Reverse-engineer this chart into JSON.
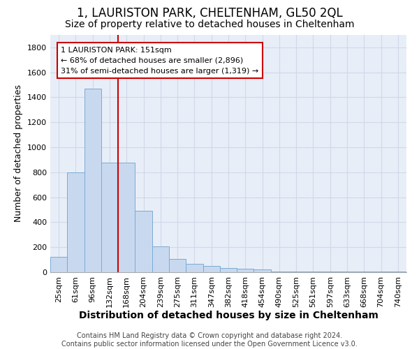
{
  "title_line1": "1, LAURISTON PARK, CHELTENHAM, GL50 2QL",
  "title_line2": "Size of property relative to detached houses in Cheltenham",
  "xlabel": "Distribution of detached houses by size in Cheltenham",
  "ylabel": "Number of detached properties",
  "footer_line1": "Contains HM Land Registry data © Crown copyright and database right 2024.",
  "footer_line2": "Contains public sector information licensed under the Open Government Licence v3.0.",
  "categories": [
    "25sqm",
    "61sqm",
    "96sqm",
    "132sqm",
    "168sqm",
    "204sqm",
    "239sqm",
    "275sqm",
    "311sqm",
    "347sqm",
    "382sqm",
    "418sqm",
    "454sqm",
    "490sqm",
    "525sqm",
    "561sqm",
    "597sqm",
    "633sqm",
    "668sqm",
    "704sqm",
    "740sqm"
  ],
  "values": [
    125,
    800,
    1470,
    875,
    875,
    490,
    205,
    105,
    65,
    50,
    35,
    30,
    20,
    5,
    5,
    5,
    5,
    5,
    5,
    5,
    5
  ],
  "bar_color": "#c8d9ef",
  "bar_edge_color": "#7aaad4",
  "vline_x": 3.5,
  "vline_color": "#cc0000",
  "annotation_line1": "1 LAURISTON PARK: 151sqm",
  "annotation_line2": "← 68% of detached houses are smaller (2,896)",
  "annotation_line3": "31% of semi-detached houses are larger (1,319) →",
  "annotation_box_color": "#cc0000",
  "ylim": [
    0,
    1900
  ],
  "yticks": [
    0,
    200,
    400,
    600,
    800,
    1000,
    1200,
    1400,
    1600,
    1800
  ],
  "grid_color": "#d0d8e8",
  "bg_color": "#e8eef8",
  "title1_fontsize": 12,
  "title2_fontsize": 10,
  "xlabel_fontsize": 10,
  "ylabel_fontsize": 9,
  "tick_fontsize": 8,
  "annotation_fontsize": 8,
  "footer_fontsize": 7
}
